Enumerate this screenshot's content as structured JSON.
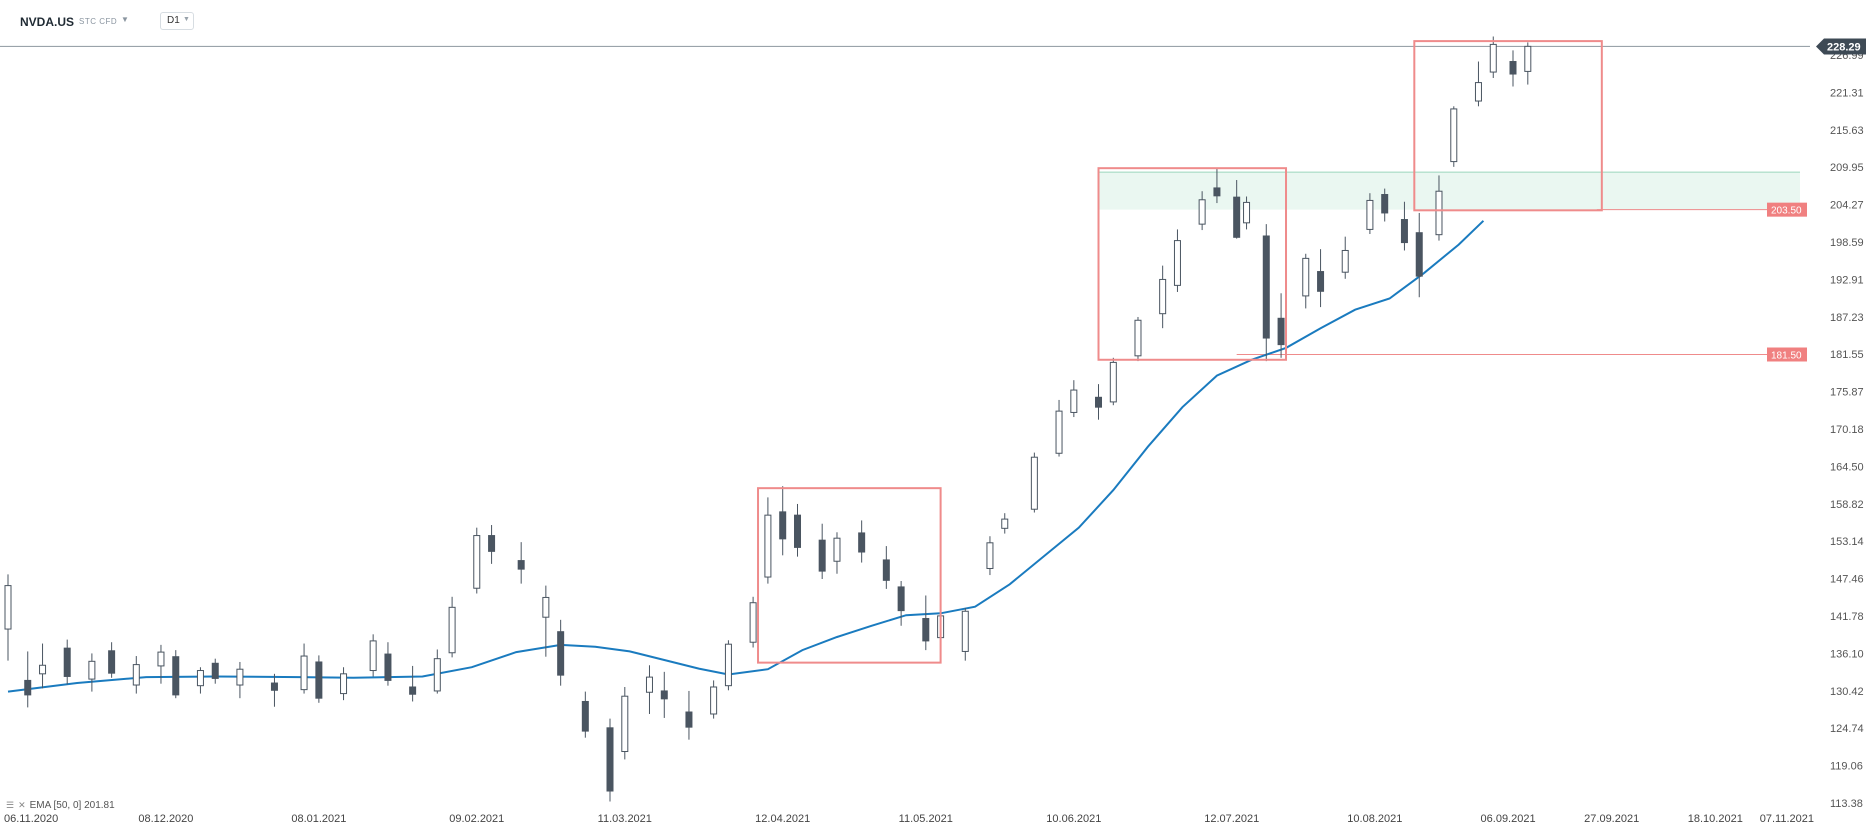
{
  "header": {
    "symbol": "NVDA.US",
    "subtitle": "STC CFD",
    "timeframe": "D1"
  },
  "indicator": {
    "label": "EMA [50, 0] 201.81"
  },
  "colors": {
    "bull": "#ffffff",
    "bear": "#4a5561",
    "wick": "#4a5561",
    "ema": "#1a7bbf",
    "box": "#ef8b8b",
    "zone_fill": "#eaf7f1",
    "zone_line": "#9bd6bd",
    "level_line": "#ef8b8b",
    "level_tag": "#f08080",
    "price_tag": "#3e4a55"
  },
  "chart_data": {
    "type": "candlestick",
    "y_ticks": [
      "113.38",
      "119.06",
      "124.74",
      "130.42",
      "136.10",
      "141.78",
      "147.46",
      "153.14",
      "158.82",
      "164.50",
      "170.18",
      "175.87",
      "181.55",
      "187.23",
      "192.91",
      "198.59",
      "204.27",
      "209.95",
      "215.63",
      "221.31",
      "226.99"
    ],
    "x_ticks": [
      {
        "date": "2020-11-06",
        "label": "06.11.2020"
      },
      {
        "date": "2020-12-08",
        "label": "08.12.2020"
      },
      {
        "date": "2021-01-08",
        "label": "08.01.2021"
      },
      {
        "date": "2021-02-09",
        "label": "09.02.2021"
      },
      {
        "date": "2021-03-11",
        "label": "11.03.2021"
      },
      {
        "date": "2021-04-12",
        "label": "12.04.2021"
      },
      {
        "date": "2021-05-11",
        "label": "11.05.2021"
      },
      {
        "date": "2021-06-10",
        "label": "10.06.2021"
      },
      {
        "date": "2021-07-12",
        "label": "12.07.2021"
      },
      {
        "date": "2021-08-10",
        "label": "10.08.2021"
      },
      {
        "date": "2021-09-06",
        "label": "06.09.2021"
      },
      {
        "date": "2021-09-27",
        "label": "27.09.2021"
      },
      {
        "date": "2021-10-18",
        "label": "18.10.2021"
      },
      {
        "date": "2021-11-07",
        "label": "07.11.2021"
      }
    ],
    "current_price": "228.29",
    "levels": [
      {
        "label": "203.50",
        "value": 203.5
      },
      {
        "label": "181.50",
        "value": 181.5
      }
    ],
    "zone": {
      "low": 203.5,
      "high": 209.2
    },
    "boxes": [
      {
        "start": "2021-04-07",
        "end": "2021-05-14",
        "low": 134.7,
        "high": 161.2
      },
      {
        "start": "2021-06-15",
        "end": "2021-07-23",
        "low": 180.7,
        "high": 209.8
      },
      {
        "start": "2021-08-18",
        "end": "2021-09-25",
        "low": 203.4,
        "high": 229.1
      }
    ],
    "ema_period": 50,
    "ema_last": 201.81,
    "ema": [
      {
        "date": "2020-11-06",
        "value": 130.3
      },
      {
        "date": "2020-11-20",
        "value": 131.6
      },
      {
        "date": "2020-12-04",
        "value": 132.5
      },
      {
        "date": "2020-12-18",
        "value": 132.6
      },
      {
        "date": "2021-01-04",
        "value": 132.5
      },
      {
        "date": "2021-01-15",
        "value": 132.4
      },
      {
        "date": "2021-01-29",
        "value": 132.6
      },
      {
        "date": "2021-02-08",
        "value": 134.0
      },
      {
        "date": "2021-02-17",
        "value": 136.3
      },
      {
        "date": "2021-02-26",
        "value": 137.4
      },
      {
        "date": "2021-03-05",
        "value": 137.1
      },
      {
        "date": "2021-03-12",
        "value": 136.4
      },
      {
        "date": "2021-03-19",
        "value": 135.1
      },
      {
        "date": "2021-03-26",
        "value": 133.8
      },
      {
        "date": "2021-04-01",
        "value": 132.9
      },
      {
        "date": "2021-04-09",
        "value": 133.7
      },
      {
        "date": "2021-04-16",
        "value": 136.6
      },
      {
        "date": "2021-04-23",
        "value": 138.6
      },
      {
        "date": "2021-04-30",
        "value": 140.3
      },
      {
        "date": "2021-05-07",
        "value": 141.9
      },
      {
        "date": "2021-05-14",
        "value": 142.2
      },
      {
        "date": "2021-05-21",
        "value": 143.2
      },
      {
        "date": "2021-05-28",
        "value": 146.6
      },
      {
        "date": "2021-06-04",
        "value": 150.9
      },
      {
        "date": "2021-06-11",
        "value": 155.2
      },
      {
        "date": "2021-06-18",
        "value": 160.9
      },
      {
        "date": "2021-06-25",
        "value": 167.5
      },
      {
        "date": "2021-07-02",
        "value": 173.5
      },
      {
        "date": "2021-07-09",
        "value": 178.3
      },
      {
        "date": "2021-07-16",
        "value": 180.7
      },
      {
        "date": "2021-07-23",
        "value": 182.5
      },
      {
        "date": "2021-07-30",
        "value": 185.5
      },
      {
        "date": "2021-08-06",
        "value": 188.3
      },
      {
        "date": "2021-08-13",
        "value": 190.0
      },
      {
        "date": "2021-08-20",
        "value": 193.9
      },
      {
        "date": "2021-08-27",
        "value": 198.2
      },
      {
        "date": "2021-09-01",
        "value": 201.8
      }
    ],
    "candles": [
      {
        "date": "2020-11-06",
        "o": 139.8,
        "h": 148.1,
        "l": 135.0,
        "c": 146.4
      },
      {
        "date": "2020-11-10",
        "o": 132.0,
        "h": 136.4,
        "l": 127.9,
        "c": 129.8
      },
      {
        "date": "2020-11-13",
        "o": 133.0,
        "h": 137.6,
        "l": 130.8,
        "c": 134.3
      },
      {
        "date": "2020-11-18",
        "o": 136.9,
        "h": 138.2,
        "l": 131.4,
        "c": 132.6
      },
      {
        "date": "2020-11-23",
        "o": 132.2,
        "h": 136.1,
        "l": 130.3,
        "c": 134.9
      },
      {
        "date": "2020-11-27",
        "o": 136.5,
        "h": 137.8,
        "l": 132.4,
        "c": 133.1
      },
      {
        "date": "2020-12-02",
        "o": 131.3,
        "h": 135.7,
        "l": 130.0,
        "c": 134.4
      },
      {
        "date": "2020-12-07",
        "o": 134.2,
        "h": 137.4,
        "l": 131.5,
        "c": 136.3
      },
      {
        "date": "2020-12-10",
        "o": 135.6,
        "h": 136.6,
        "l": 129.3,
        "c": 129.8
      },
      {
        "date": "2020-12-15",
        "o": 131.2,
        "h": 134.0,
        "l": 130.0,
        "c": 133.5
      },
      {
        "date": "2020-12-18",
        "o": 134.6,
        "h": 135.3,
        "l": 131.5,
        "c": 132.3
      },
      {
        "date": "2020-12-23",
        "o": 131.3,
        "h": 134.8,
        "l": 129.3,
        "c": 133.7
      },
      {
        "date": "2020-12-30",
        "o": 131.6,
        "h": 133.0,
        "l": 128.0,
        "c": 130.5
      },
      {
        "date": "2021-01-05",
        "o": 130.6,
        "h": 137.6,
        "l": 130.0,
        "c": 135.7
      },
      {
        "date": "2021-01-08",
        "o": 134.8,
        "h": 135.8,
        "l": 128.6,
        "c": 129.3
      },
      {
        "date": "2021-01-13",
        "o": 130.0,
        "h": 134.0,
        "l": 129.0,
        "c": 133.0
      },
      {
        "date": "2021-01-19",
        "o": 133.5,
        "h": 139.0,
        "l": 132.6,
        "c": 138.0
      },
      {
        "date": "2021-01-22",
        "o": 136.0,
        "h": 137.8,
        "l": 131.2,
        "c": 132.0
      },
      {
        "date": "2021-01-27",
        "o": 131.0,
        "h": 134.2,
        "l": 128.8,
        "c": 129.9
      },
      {
        "date": "2021-02-01",
        "o": 130.4,
        "h": 136.7,
        "l": 130.0,
        "c": 135.3
      },
      {
        "date": "2021-02-04",
        "o": 136.2,
        "h": 144.7,
        "l": 135.5,
        "c": 143.1
      },
      {
        "date": "2021-02-09",
        "o": 146.0,
        "h": 155.2,
        "l": 145.2,
        "c": 154.0
      },
      {
        "date": "2021-02-12",
        "o": 154.0,
        "h": 155.6,
        "l": 149.7,
        "c": 151.6
      },
      {
        "date": "2021-02-18",
        "o": 150.2,
        "h": 153.0,
        "l": 146.7,
        "c": 148.9
      },
      {
        "date": "2021-02-23",
        "o": 141.6,
        "h": 146.4,
        "l": 135.6,
        "c": 144.6
      },
      {
        "date": "2021-02-26",
        "o": 139.4,
        "h": 141.2,
        "l": 131.2,
        "c": 132.8
      },
      {
        "date": "2021-03-03",
        "o": 128.8,
        "h": 130.3,
        "l": 123.3,
        "c": 124.3
      },
      {
        "date": "2021-03-08",
        "o": 124.8,
        "h": 126.2,
        "l": 113.6,
        "c": 115.2
      },
      {
        "date": "2021-03-11",
        "o": 121.2,
        "h": 131.0,
        "l": 120.0,
        "c": 129.6
      },
      {
        "date": "2021-03-16",
        "o": 130.2,
        "h": 134.3,
        "l": 126.9,
        "c": 132.5
      },
      {
        "date": "2021-03-19",
        "o": 130.4,
        "h": 133.3,
        "l": 126.3,
        "c": 129.2
      },
      {
        "date": "2021-03-24",
        "o": 127.2,
        "h": 130.4,
        "l": 123.0,
        "c": 124.9
      },
      {
        "date": "2021-03-29",
        "o": 126.9,
        "h": 132.0,
        "l": 126.2,
        "c": 131.0
      },
      {
        "date": "2021-04-01",
        "o": 131.2,
        "h": 138.1,
        "l": 130.5,
        "c": 137.5
      },
      {
        "date": "2021-04-06",
        "o": 137.8,
        "h": 144.7,
        "l": 137.0,
        "c": 143.8
      },
      {
        "date": "2021-04-09",
        "o": 147.7,
        "h": 159.8,
        "l": 146.7,
        "c": 157.1
      },
      {
        "date": "2021-04-12",
        "o": 157.6,
        "h": 161.5,
        "l": 151.0,
        "c": 153.5
      },
      {
        "date": "2021-04-15",
        "o": 157.1,
        "h": 158.8,
        "l": 150.8,
        "c": 152.2
      },
      {
        "date": "2021-04-20",
        "o": 153.3,
        "h": 155.8,
        "l": 147.4,
        "c": 148.6
      },
      {
        "date": "2021-04-23",
        "o": 150.1,
        "h": 154.5,
        "l": 148.2,
        "c": 153.6
      },
      {
        "date": "2021-04-28",
        "o": 154.4,
        "h": 156.3,
        "l": 149.9,
        "c": 151.5
      },
      {
        "date": "2021-05-03",
        "o": 150.3,
        "h": 152.4,
        "l": 145.9,
        "c": 147.2
      },
      {
        "date": "2021-05-06",
        "o": 146.2,
        "h": 147.1,
        "l": 140.3,
        "c": 142.6
      },
      {
        "date": "2021-05-11",
        "o": 141.4,
        "h": 144.9,
        "l": 136.6,
        "c": 138.0
      },
      {
        "date": "2021-05-14",
        "o": 138.5,
        "h": 143.0,
        "l": 134.9,
        "c": 141.8
      },
      {
        "date": "2021-05-19",
        "o": 136.4,
        "h": 143.0,
        "l": 135.0,
        "c": 142.5
      },
      {
        "date": "2021-05-24",
        "o": 149.0,
        "h": 153.9,
        "l": 148.0,
        "c": 152.9
      },
      {
        "date": "2021-05-27",
        "o": 155.1,
        "h": 157.4,
        "l": 154.3,
        "c": 156.5
      },
      {
        "date": "2021-06-02",
        "o": 158.0,
        "h": 166.6,
        "l": 157.5,
        "c": 165.9
      },
      {
        "date": "2021-06-07",
        "o": 166.5,
        "h": 174.6,
        "l": 166.0,
        "c": 172.9
      },
      {
        "date": "2021-06-10",
        "o": 172.7,
        "h": 177.6,
        "l": 172.0,
        "c": 176.1
      },
      {
        "date": "2021-06-15",
        "o": 175.0,
        "h": 177.0,
        "l": 171.6,
        "c": 173.5
      },
      {
        "date": "2021-06-18",
        "o": 174.3,
        "h": 181.0,
        "l": 173.8,
        "c": 180.3
      },
      {
        "date": "2021-06-23",
        "o": 181.3,
        "h": 187.2,
        "l": 180.5,
        "c": 186.7
      },
      {
        "date": "2021-06-28",
        "o": 187.7,
        "h": 195.0,
        "l": 185.5,
        "c": 192.9
      },
      {
        "date": "2021-07-01",
        "o": 192.0,
        "h": 200.5,
        "l": 191.0,
        "c": 198.8
      },
      {
        "date": "2021-07-06",
        "o": 201.3,
        "h": 206.3,
        "l": 200.4,
        "c": 205.0
      },
      {
        "date": "2021-07-09",
        "o": 206.8,
        "h": 209.7,
        "l": 204.5,
        "c": 205.6
      },
      {
        "date": "2021-07-13",
        "o": 205.4,
        "h": 208.0,
        "l": 199.1,
        "c": 199.3
      },
      {
        "date": "2021-07-15",
        "o": 201.5,
        "h": 205.5,
        "l": 200.5,
        "c": 204.6
      },
      {
        "date": "2021-07-19",
        "o": 199.5,
        "h": 201.3,
        "l": 180.5,
        "c": 184.0
      },
      {
        "date": "2021-07-22",
        "o": 187.0,
        "h": 190.8,
        "l": 181.0,
        "c": 183.0
      },
      {
        "date": "2021-07-27",
        "o": 190.4,
        "h": 196.8,
        "l": 188.5,
        "c": 196.1
      },
      {
        "date": "2021-07-30",
        "o": 194.1,
        "h": 197.5,
        "l": 188.7,
        "c": 191.1
      },
      {
        "date": "2021-08-04",
        "o": 194.0,
        "h": 199.4,
        "l": 193.0,
        "c": 197.3
      },
      {
        "date": "2021-08-09",
        "o": 200.5,
        "h": 206.0,
        "l": 199.8,
        "c": 204.9
      },
      {
        "date": "2021-08-12",
        "o": 205.8,
        "h": 206.7,
        "l": 201.7,
        "c": 203.0
      },
      {
        "date": "2021-08-16",
        "o": 202.0,
        "h": 204.7,
        "l": 197.3,
        "c": 198.5
      },
      {
        "date": "2021-08-19",
        "o": 200.0,
        "h": 203.0,
        "l": 190.2,
        "c": 193.4
      },
      {
        "date": "2021-08-23",
        "o": 199.7,
        "h": 208.7,
        "l": 198.8,
        "c": 206.3
      },
      {
        "date": "2021-08-26",
        "o": 210.8,
        "h": 219.2,
        "l": 210.0,
        "c": 218.8
      },
      {
        "date": "2021-08-31",
        "o": 220.0,
        "h": 226.0,
        "l": 219.2,
        "c": 222.8
      },
      {
        "date": "2021-09-03",
        "o": 224.4,
        "h": 229.8,
        "l": 223.5,
        "c": 228.6
      },
      {
        "date": "2021-09-07",
        "o": 226.0,
        "h": 227.7,
        "l": 222.2,
        "c": 224.1
      },
      {
        "date": "2021-09-10",
        "o": 224.5,
        "h": 228.9,
        "l": 222.5,
        "c": 228.3
      }
    ]
  }
}
